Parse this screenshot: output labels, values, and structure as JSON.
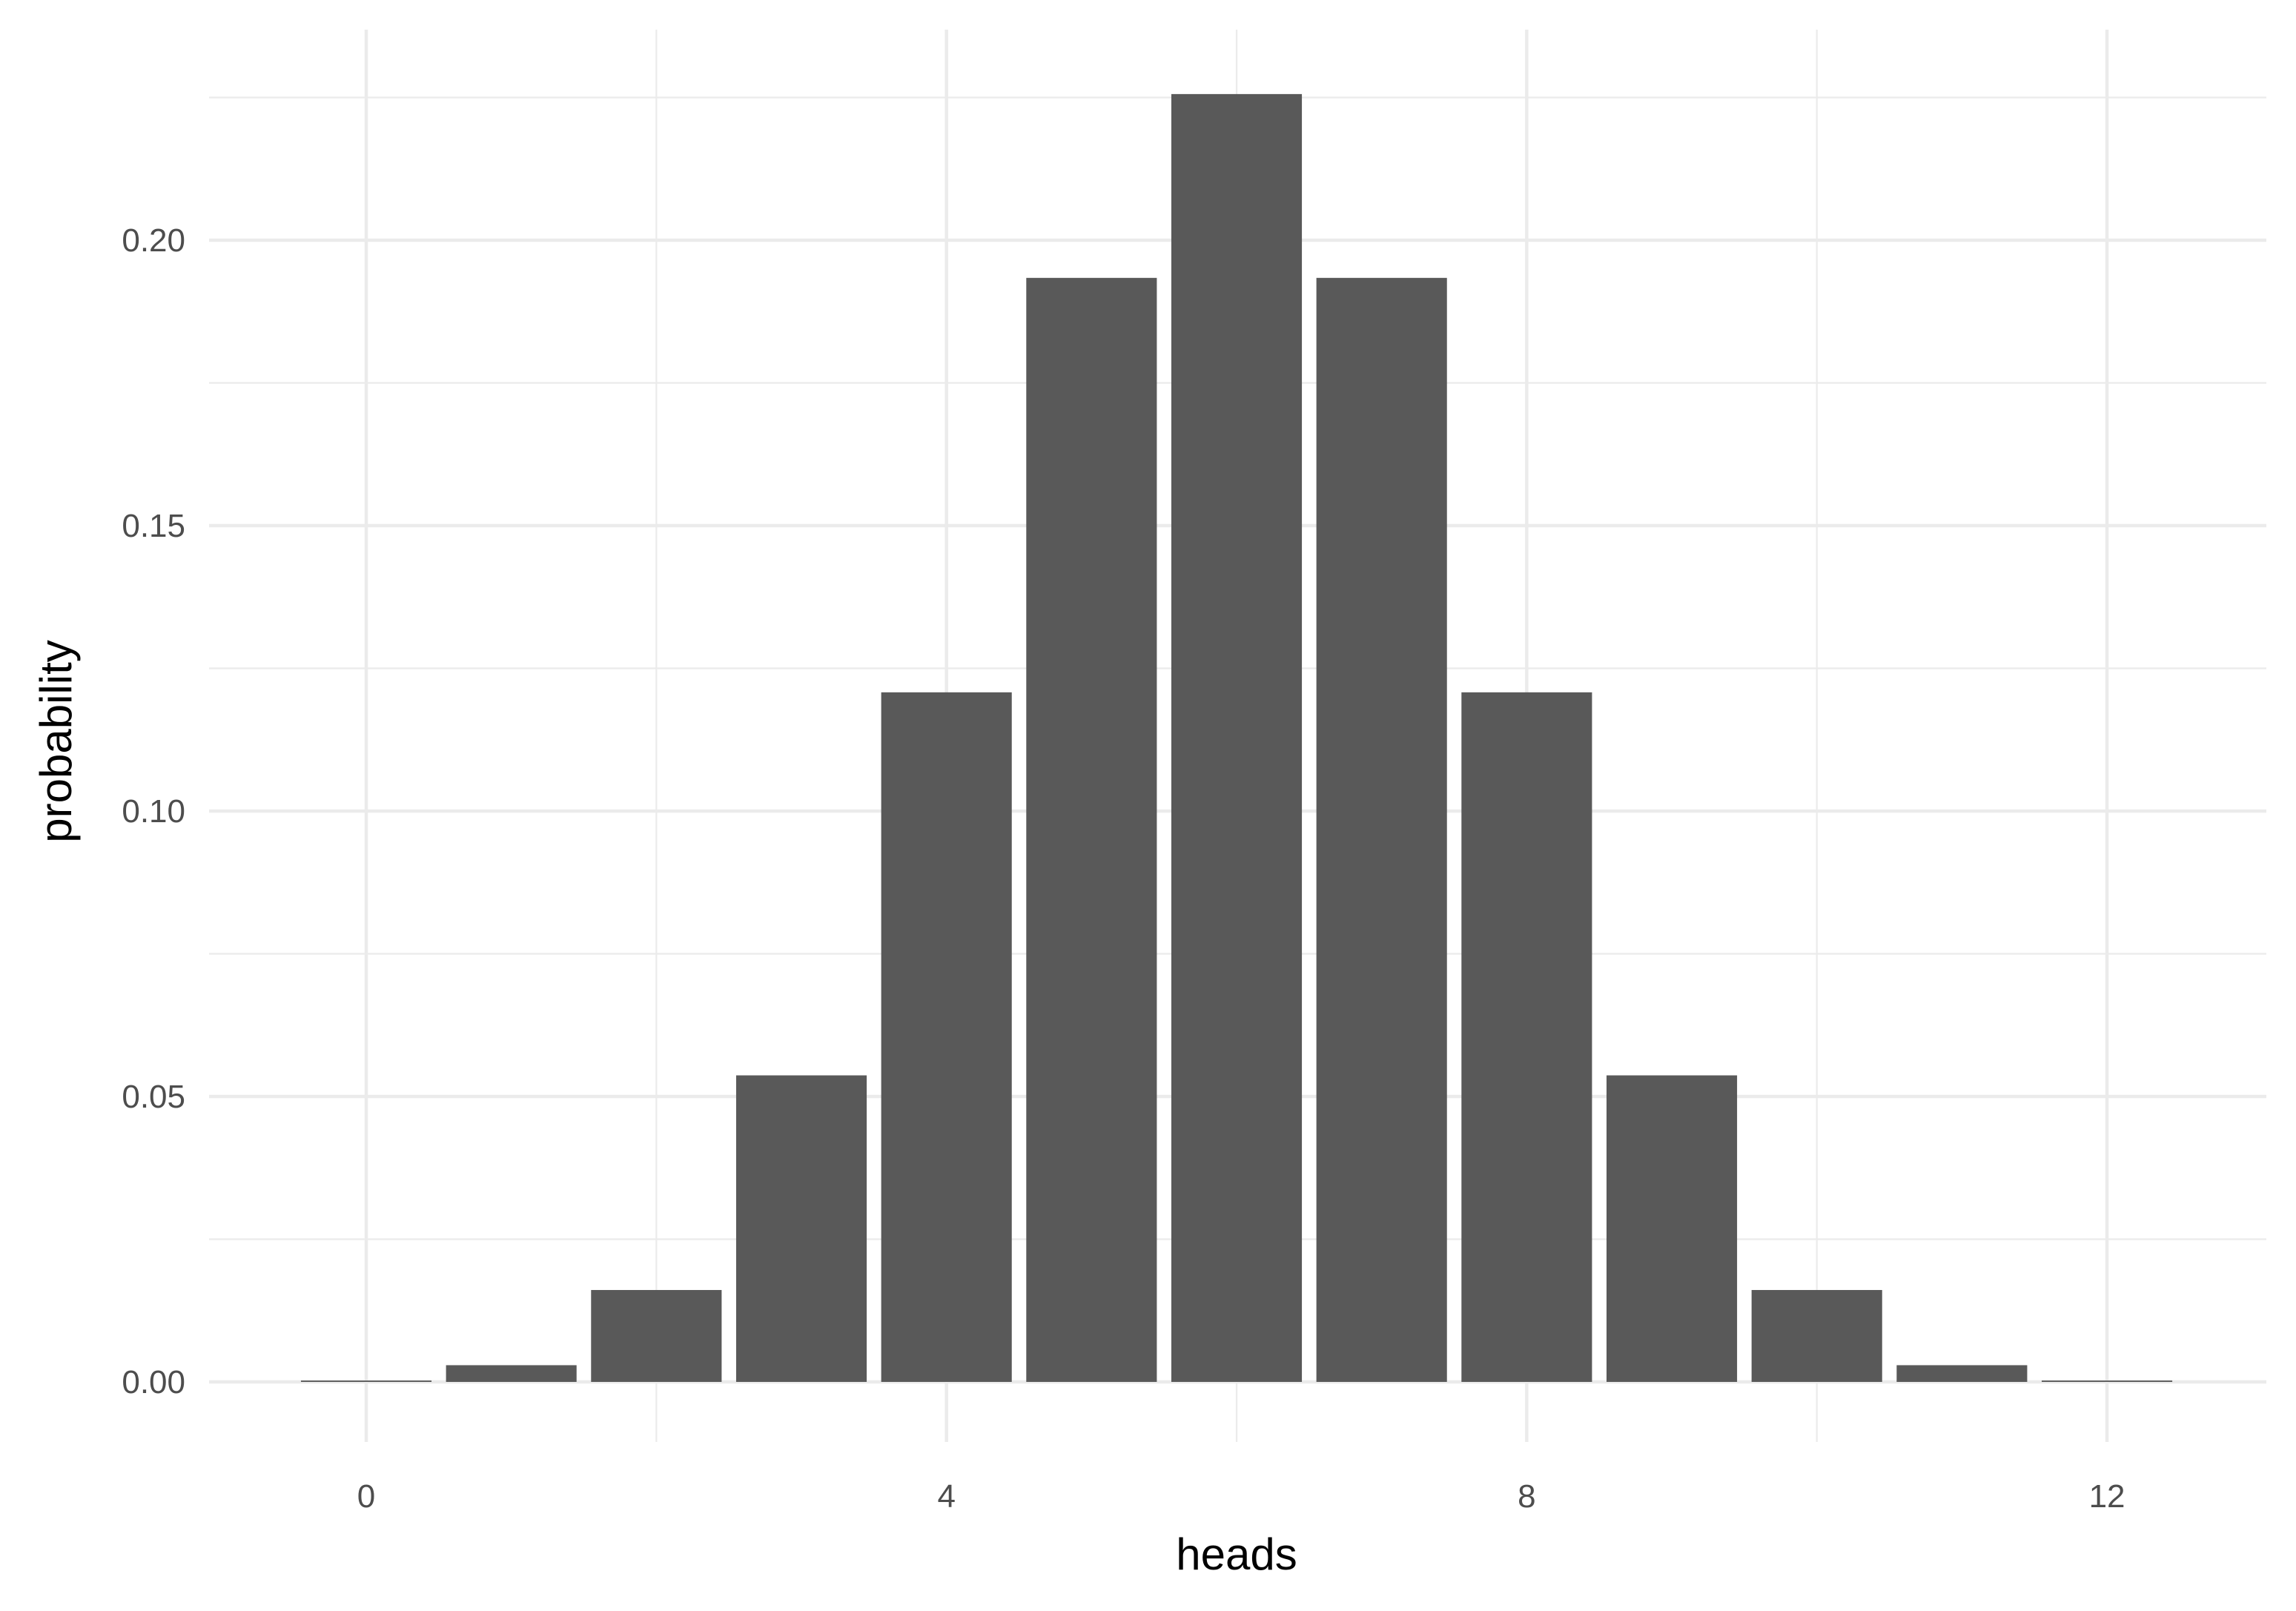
{
  "chart_data": {
    "type": "bar",
    "title": "",
    "xlabel": "heads",
    "ylabel": "probability",
    "x": [
      0,
      1,
      2,
      3,
      4,
      5,
      6,
      7,
      8,
      9,
      10,
      11,
      12
    ],
    "values": [
      0.000244,
      0.00293,
      0.0161,
      0.0537,
      0.1208,
      0.1934,
      0.2256,
      0.1934,
      0.1208,
      0.0537,
      0.0161,
      0.00293,
      0.000244
    ],
    "xlim": [
      -1.1,
      13.1
    ],
    "ylim": [
      -0.0113,
      0.237
    ],
    "xticks": [
      0,
      4,
      8,
      12
    ],
    "xtick_labels": [
      "0",
      "4",
      "8",
      "12"
    ],
    "yticks": [
      0,
      0.05,
      0.1,
      0.15,
      0.2
    ],
    "ytick_labels": [
      "0.00",
      "0.05",
      "0.10",
      "0.15",
      "0.20"
    ],
    "grid": true,
    "bar_color": "#595959",
    "grid_color": "#ebebeb"
  }
}
